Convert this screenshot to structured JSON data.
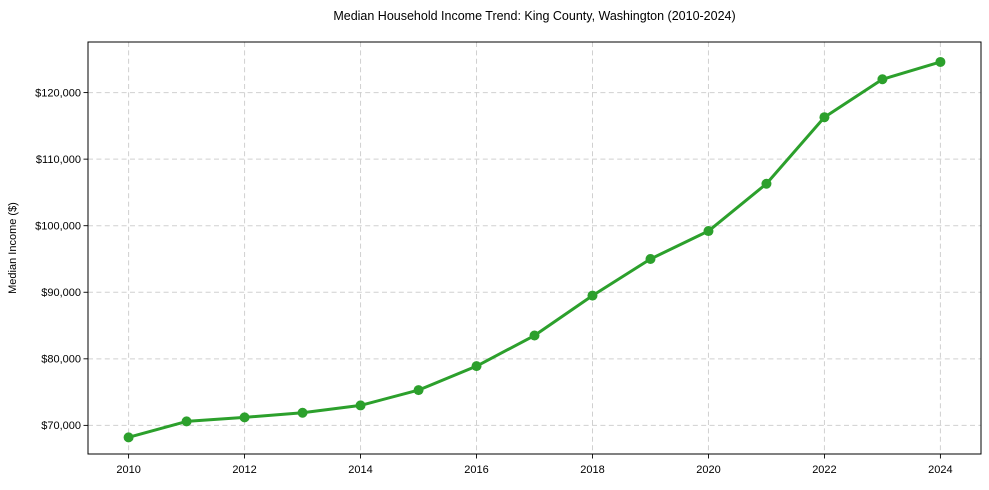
{
  "chart_data": {
    "type": "line",
    "title": "Median Household Income Trend: King County, Washington (2010-2024)",
    "xlabel": "",
    "ylabel": "Median Income ($)",
    "x": [
      2010,
      2011,
      2012,
      2013,
      2014,
      2015,
      2016,
      2017,
      2018,
      2019,
      2020,
      2021,
      2022,
      2023,
      2024
    ],
    "values": [
      68200,
      70600,
      71200,
      71900,
      73000,
      75300,
      78900,
      83500,
      89500,
      95000,
      99200,
      106300,
      116300,
      122000,
      124600
    ],
    "xticks": [
      2010,
      2012,
      2014,
      2016,
      2018,
      2020,
      2022,
      2024
    ],
    "xtick_labels": [
      "2010",
      "2012",
      "2014",
      "2016",
      "2018",
      "2020",
      "2022",
      "2024"
    ],
    "yticks": [
      70000,
      80000,
      90000,
      100000,
      110000,
      120000
    ],
    "ytick_labels": [
      "$70,000",
      "$80,000",
      "$90,000",
      "$100,000",
      "$110,000",
      "$120,000"
    ],
    "xlim": [
      2009.3,
      2024.7
    ],
    "ylim": [
      65700,
      127600
    ],
    "grid": true,
    "grid_style": "dashed",
    "legend": false,
    "line_color": "#2ca02c",
    "marker": "circle",
    "marker_color": "#2ca02c",
    "grid_color": "#c8c8c8",
    "text_color": "#000000"
  }
}
